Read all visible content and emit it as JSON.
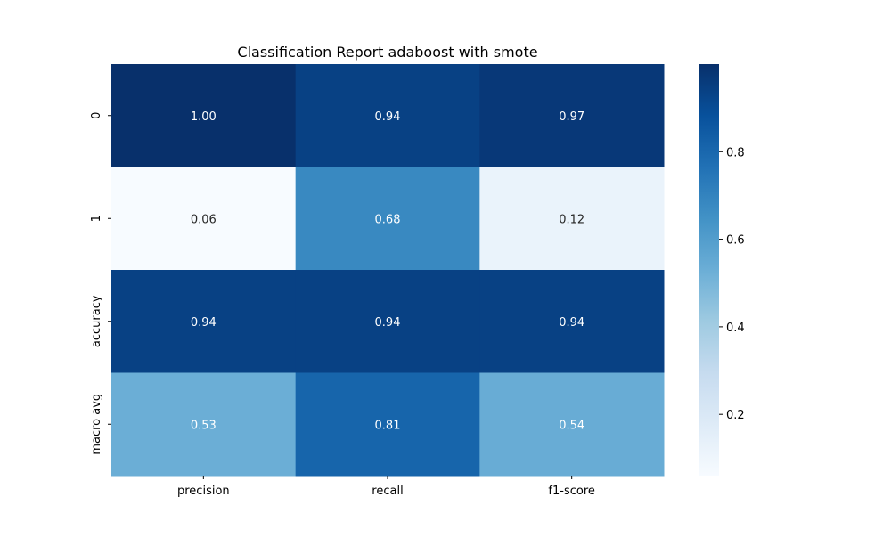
{
  "chart_data": {
    "type": "heatmap",
    "title": "Classification Report adaboost with smote",
    "xlabel": "",
    "ylabel": "",
    "x_categories": [
      "precision",
      "recall",
      "f1-score"
    ],
    "y_categories": [
      "0",
      "1",
      "accuracy",
      "macro avg"
    ],
    "values": [
      [
        1.0,
        0.94,
        0.97
      ],
      [
        0.06,
        0.68,
        0.12
      ],
      [
        0.94,
        0.94,
        0.94
      ],
      [
        0.53,
        0.81,
        0.54
      ]
    ],
    "value_labels": [
      [
        "1.00",
        "0.94",
        "0.97"
      ],
      [
        "0.06",
        "0.68",
        "0.12"
      ],
      [
        "0.94",
        "0.94",
        "0.94"
      ],
      [
        "0.53",
        "0.81",
        "0.54"
      ]
    ],
    "colormap": "Blues",
    "color_range": [
      0.06,
      1.0
    ],
    "colorbar_ticks": [
      "0.2",
      "0.4",
      "0.6",
      "0.8"
    ],
    "colorbar_tick_values": [
      0.2,
      0.4,
      0.6,
      0.8
    ],
    "grid": false,
    "legend": "colorbar-right"
  }
}
